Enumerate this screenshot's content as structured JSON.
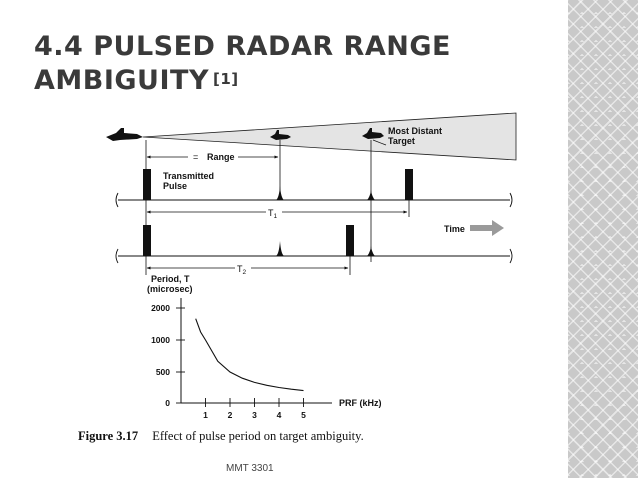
{
  "title": {
    "text": "4.4  PULSED RADAR RANGE AMBIGUITY",
    "ref": "[1]"
  },
  "diagram": {
    "label_target": "Most Distant\nTarget",
    "label_range": "Range",
    "label_transmitted": "Transmitted\nPulse",
    "label_t1": "T1",
    "label_time": "Time",
    "label_t2": "T2"
  },
  "chart_data": {
    "type": "line",
    "ylabel": "Period, T\n(microsec)",
    "xlabel": "PRF (kHz)",
    "xticks": [
      "1",
      "2",
      "3",
      "4",
      "5"
    ],
    "yticks": [
      "0",
      "500",
      "1000",
      "2000"
    ],
    "series": [
      {
        "x": [
          0.6,
          0.8,
          1,
          1.5,
          2,
          2.5,
          3,
          3.5,
          4,
          4.5,
          5
        ],
        "y": [
          1667,
          1250,
          1000,
          667,
          500,
          400,
          333,
          286,
          250,
          222,
          200
        ]
      }
    ]
  },
  "caption": {
    "label": "Figure 3.17",
    "text": "Effect of pulse period on target ambiguity."
  },
  "footer": "MMT 3301",
  "colors": {
    "title": "#3a3a3a",
    "beam": "#e4e4e4",
    "arrow": "#9a9a9a",
    "side_panel": "#c9c9c9"
  }
}
